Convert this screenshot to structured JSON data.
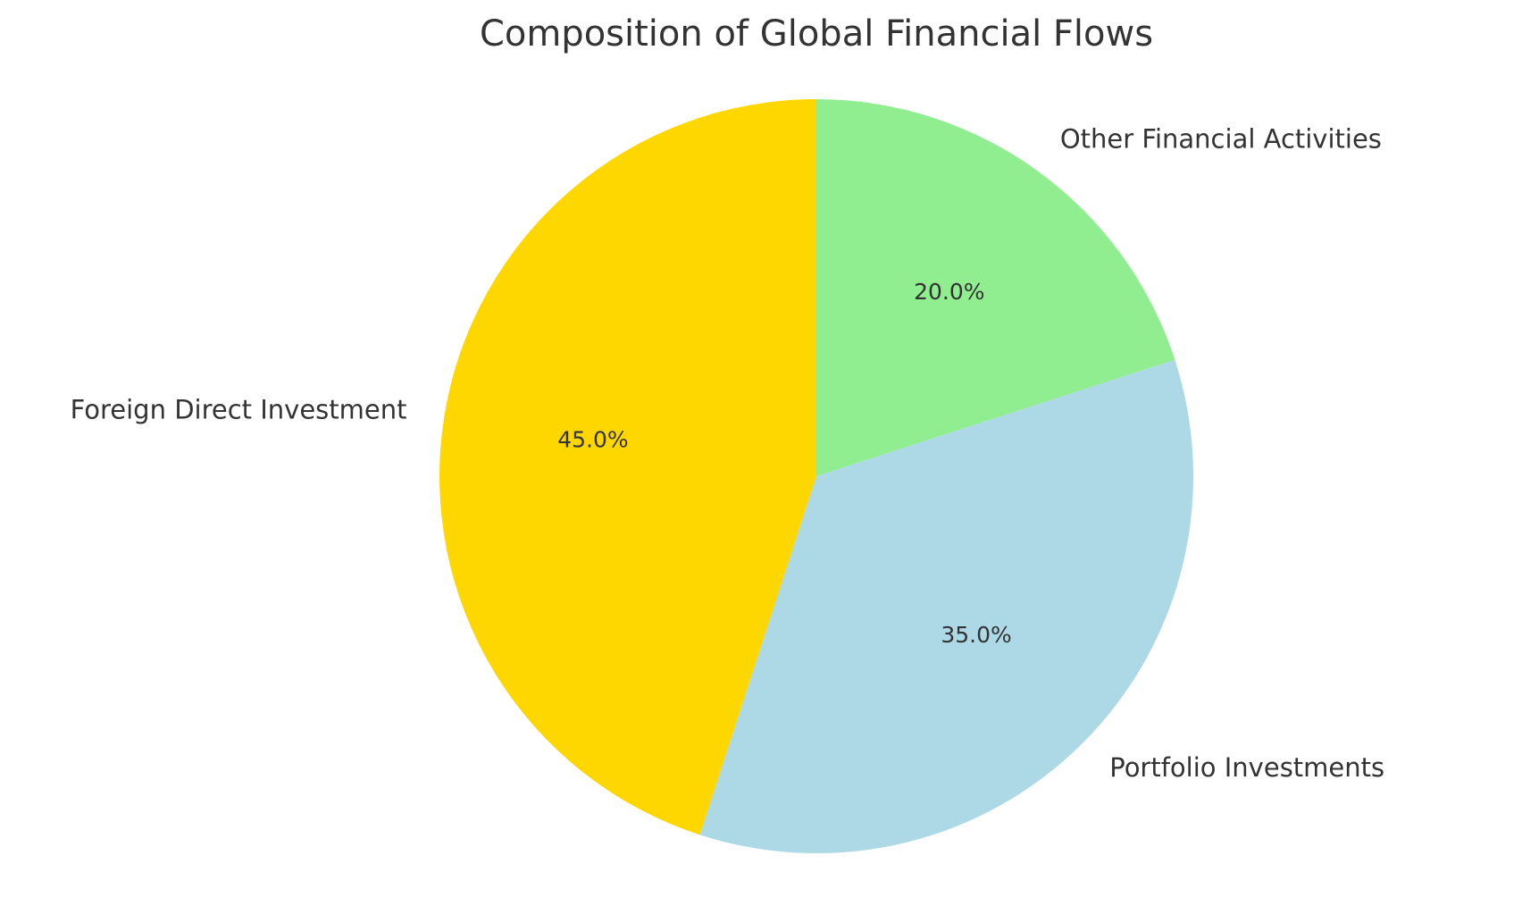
{
  "chart_data": {
    "type": "pie",
    "title": "Composition of Global Financial Flows",
    "categories": [
      "Foreign Direct Investment",
      "Portfolio Investments",
      "Other Financial Activities"
    ],
    "values": [
      45,
      35,
      20
    ],
    "value_labels": [
      "45.0%",
      "35.0%",
      "20.0%"
    ],
    "colors": [
      "#ffd700",
      "#add8e6",
      "#90ee90"
    ]
  }
}
